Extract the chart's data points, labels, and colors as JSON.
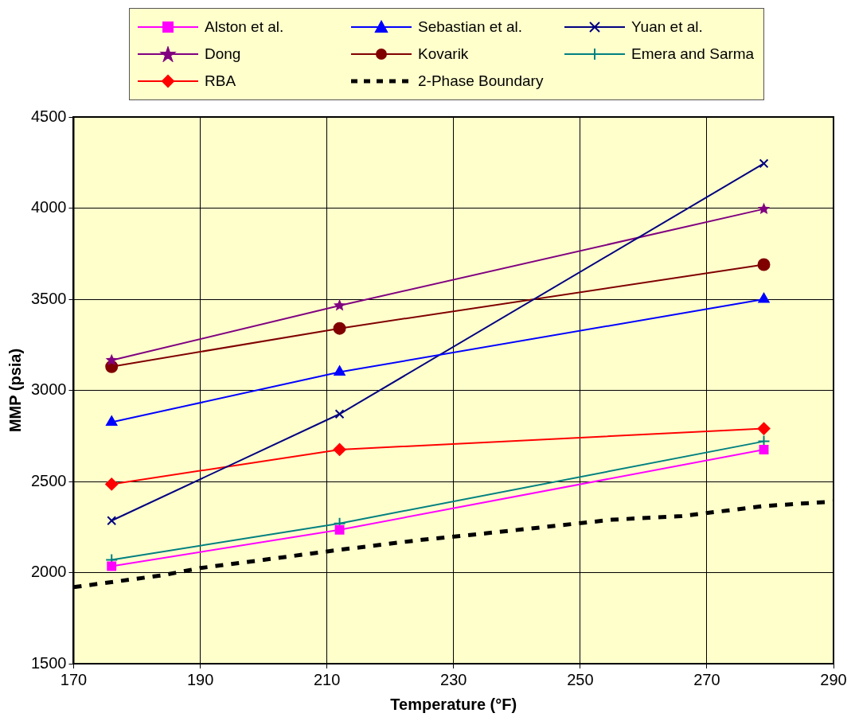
{
  "chart_data": {
    "type": "line",
    "xlabel": "Temperature (°F)",
    "ylabel": "MMP (psia)",
    "xlim": [
      170,
      290
    ],
    "xticks": [
      170,
      190,
      210,
      230,
      250,
      270,
      290
    ],
    "ylim": [
      1500,
      4500
    ],
    "yticks": [
      1500,
      2000,
      2500,
      3000,
      3500,
      4000,
      4500
    ],
    "grid": true,
    "legend": "top",
    "series": [
      {
        "name": "Alston et al.",
        "color": "#ff00ff",
        "marker": "square",
        "x": [
          176,
          212,
          279
        ],
        "values": [
          2035,
          2235,
          2675
        ]
      },
      {
        "name": "Sebastian et al.",
        "color": "#0000ff",
        "marker": "triangle",
        "x": [
          176,
          212,
          279
        ],
        "values": [
          2825,
          3100,
          3500
        ]
      },
      {
        "name": "Yuan et al.",
        "color": "#000080",
        "marker": "cross",
        "x": [
          176,
          212,
          279
        ],
        "values": [
          2285,
          2870,
          4245
        ]
      },
      {
        "name": "Dong",
        "color": "#800080",
        "marker": "star",
        "x": [
          176,
          212,
          279
        ],
        "values": [
          3165,
          3465,
          3995
        ]
      },
      {
        "name": "Kovarik",
        "color": "#800000",
        "marker": "circle",
        "x": [
          176,
          212,
          279
        ],
        "values": [
          3130,
          3340,
          3690
        ]
      },
      {
        "name": "Emera and Sarma",
        "color": "#008080",
        "marker": "plus",
        "x": [
          176,
          212,
          279
        ],
        "values": [
          2070,
          2270,
          2720
        ]
      },
      {
        "name": "RBA",
        "color": "#ff0000",
        "marker": "diamond",
        "x": [
          176,
          212,
          279
        ],
        "values": [
          2485,
          2675,
          2790
        ]
      },
      {
        "name": "2-Phase Boundary",
        "color": "#000000",
        "marker": "none",
        "line_style": "dashed",
        "x": [
          170,
          184,
          190,
          200,
          212,
          225,
          235,
          247,
          255,
          266,
          279,
          290
        ],
        "values": [
          1920,
          1985,
          2025,
          2070,
          2125,
          2180,
          2215,
          2260,
          2290,
          2310,
          2365,
          2390
        ]
      }
    ]
  }
}
